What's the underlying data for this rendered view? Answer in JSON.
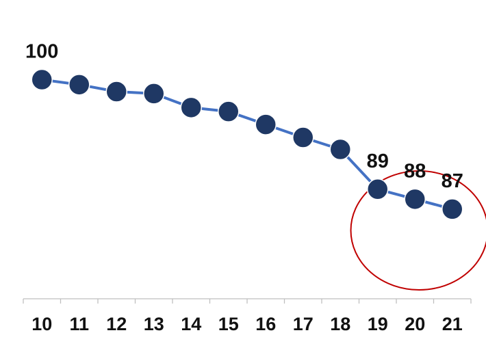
{
  "chart_data": {
    "type": "line",
    "title": "",
    "xlabel": "",
    "ylabel": "",
    "categories": [
      "10",
      "11",
      "12",
      "13",
      "14",
      "15",
      "16",
      "17",
      "18",
      "19",
      "20",
      "21"
    ],
    "series": [
      {
        "values": [
          100,
          99.5,
          98.8,
          98.6,
          97.2,
          96.8,
          95.5,
          94.2,
          93,
          89,
          88,
          87
        ],
        "labeled_points": [
          {
            "index": 0,
            "label": "100"
          },
          {
            "index": 9,
            "label": "89"
          },
          {
            "index": 10,
            "label": "88"
          },
          {
            "index": 11,
            "label": "87"
          }
        ]
      }
    ],
    "ylim": [
      78,
      108
    ],
    "grid": false,
    "legend": "none",
    "highlight": {
      "shape": "ellipse",
      "categories": [
        "19",
        "20",
        "21"
      ]
    },
    "colors": {
      "line": "#4472C4",
      "marker_fill": "#1F3864",
      "marker_stroke": "#ffffff",
      "axis": "#BFBFBF",
      "highlight": "#C00000",
      "text": "#111111"
    }
  }
}
